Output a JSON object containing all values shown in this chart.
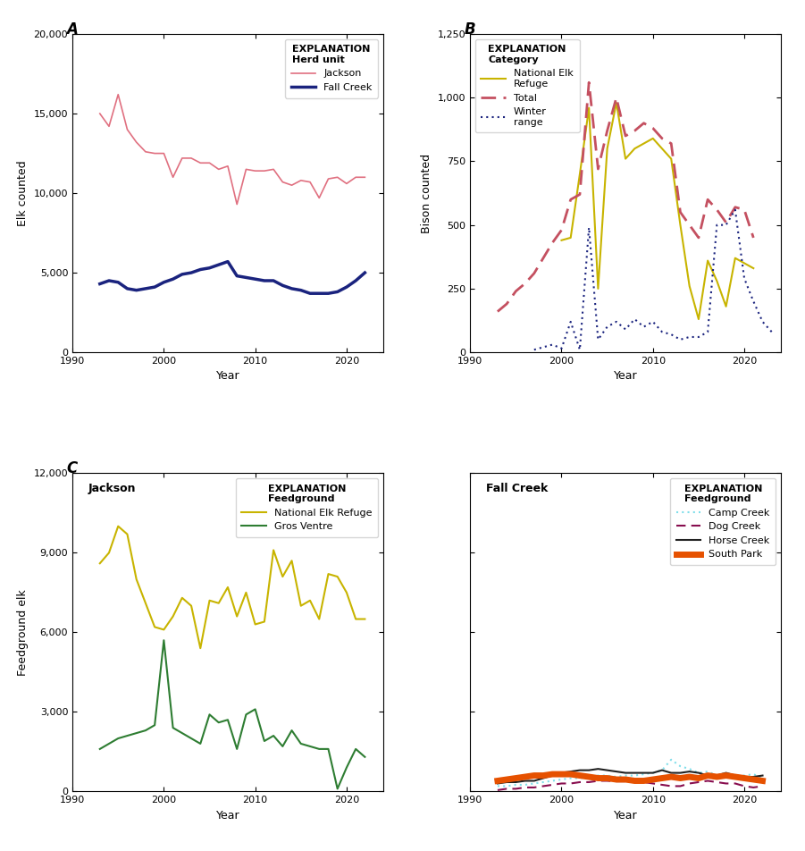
{
  "panel_A": {
    "title": "A",
    "xlabel": "Year",
    "ylabel": "Elk counted",
    "ylim": [
      0,
      20000
    ],
    "yticks": [
      0,
      5000,
      10000,
      15000,
      20000
    ],
    "xlim": [
      1990,
      2024
    ],
    "xticks": [
      1990,
      2000,
      2010,
      2020
    ],
    "jackson_years": [
      1993,
      1994,
      1995,
      1996,
      1997,
      1998,
      1999,
      2000,
      2001,
      2002,
      2003,
      2004,
      2005,
      2006,
      2007,
      2008,
      2009,
      2010,
      2011,
      2012,
      2013,
      2014,
      2015,
      2016,
      2017,
      2018,
      2019,
      2020,
      2021,
      2022
    ],
    "jackson_vals": [
      15000,
      14200,
      16200,
      14000,
      13200,
      12600,
      12500,
      12500,
      11000,
      12200,
      12200,
      11900,
      11900,
      11500,
      11700,
      9300,
      11500,
      11400,
      11400,
      11500,
      10700,
      10500,
      10800,
      10700,
      9700,
      10900,
      11000,
      10600,
      11000,
      11000
    ],
    "fallcreek_years": [
      1993,
      1994,
      1995,
      1996,
      1997,
      1998,
      1999,
      2000,
      2001,
      2002,
      2003,
      2004,
      2005,
      2006,
      2007,
      2008,
      2009,
      2010,
      2011,
      2012,
      2013,
      2014,
      2015,
      2016,
      2017,
      2018,
      2019,
      2020,
      2021,
      2022
    ],
    "fallcreek_vals": [
      4300,
      4500,
      4400,
      4000,
      3900,
      4000,
      4100,
      4400,
      4600,
      4900,
      5000,
      5200,
      5300,
      5500,
      5700,
      4800,
      4700,
      4600,
      4500,
      4500,
      4200,
      4000,
      3900,
      3700,
      3700,
      3700,
      3800,
      4100,
      4500,
      5000
    ],
    "jackson_color": "#e07080",
    "fallcreek_color": "#1a237e",
    "legend_title": "EXPLANATION",
    "legend_subtitle": "Herd unit"
  },
  "panel_B": {
    "title": "B",
    "xlabel": "Year",
    "ylabel": "Bison counted",
    "ylim": [
      0,
      1250
    ],
    "yticks": [
      0,
      250,
      500,
      750,
      1000,
      1250
    ],
    "xlim": [
      1990,
      2024
    ],
    "xticks": [
      1990,
      2000,
      2010,
      2020
    ],
    "ner_years": [
      2000,
      2001,
      2002,
      2003,
      2004,
      2005,
      2006,
      2007,
      2008,
      2009,
      2010,
      2011,
      2012,
      2013,
      2014,
      2015,
      2016,
      2017,
      2018,
      2019,
      2020,
      2021
    ],
    "ner_vals": [
      440,
      450,
      700,
      960,
      250,
      800,
      980,
      760,
      800,
      820,
      840,
      800,
      760,
      500,
      260,
      130,
      360,
      280,
      180,
      370,
      350,
      330
    ],
    "total_years": [
      1993,
      1994,
      1995,
      1996,
      1997,
      1998,
      1999,
      2000,
      2001,
      2002,
      2003,
      2004,
      2005,
      2006,
      2007,
      2008,
      2009,
      2010,
      2011,
      2012,
      2013,
      2014,
      2015,
      2016,
      2017,
      2018,
      2019,
      2020,
      2021
    ],
    "total_vals": [
      160,
      190,
      240,
      270,
      310,
      370,
      430,
      480,
      600,
      620,
      1060,
      720,
      870,
      1000,
      850,
      870,
      900,
      880,
      840,
      820,
      550,
      500,
      450,
      600,
      560,
      510,
      570,
      560,
      450
    ],
    "winter_years": [
      1997,
      1998,
      1999,
      2000,
      2001,
      2002,
      2003,
      2004,
      2005,
      2006,
      2007,
      2008,
      2009,
      2010,
      2011,
      2012,
      2013,
      2014,
      2015,
      2016,
      2017,
      2018,
      2019,
      2020,
      2021,
      2022,
      2023
    ],
    "winter_vals": [
      10,
      20,
      30,
      15,
      120,
      10,
      490,
      50,
      100,
      120,
      90,
      130,
      100,
      120,
      80,
      70,
      50,
      60,
      60,
      80,
      500,
      500,
      560,
      290,
      200,
      120,
      80
    ],
    "ner_color": "#c8b400",
    "total_color": "#c45060",
    "winter_color": "#1a237e",
    "legend_title": "EXPLANATION",
    "legend_subtitle": "Category"
  },
  "panel_C1": {
    "title_label": "Jackson",
    "xlabel": "Year",
    "ylabel": "Feedground elk",
    "ylim": [
      0,
      12000
    ],
    "yticks": [
      0,
      3000,
      6000,
      9000,
      12000
    ],
    "xlim": [
      1990,
      2024
    ],
    "xticks": [
      1990,
      2000,
      2010,
      2020
    ],
    "ner_years": [
      1993,
      1994,
      1995,
      1996,
      1997,
      1998,
      1999,
      2000,
      2001,
      2002,
      2003,
      2004,
      2005,
      2006,
      2007,
      2008,
      2009,
      2010,
      2011,
      2012,
      2013,
      2014,
      2015,
      2016,
      2017,
      2018,
      2019,
      2020,
      2021,
      2022
    ],
    "ner_vals": [
      8600,
      9000,
      10000,
      9700,
      8000,
      7100,
      6200,
      6100,
      6600,
      7300,
      7000,
      5400,
      7200,
      7100,
      7700,
      6600,
      7500,
      6300,
      6400,
      9100,
      8100,
      8700,
      7000,
      7200,
      6500,
      8200,
      8100,
      7500,
      6500,
      6500
    ],
    "grosventre_years": [
      1993,
      1994,
      1995,
      1996,
      1997,
      1998,
      1999,
      2000,
      2001,
      2002,
      2003,
      2004,
      2005,
      2006,
      2007,
      2008,
      2009,
      2010,
      2011,
      2012,
      2013,
      2014,
      2015,
      2016,
      2017,
      2018,
      2019,
      2020,
      2021,
      2022
    ],
    "grosventre_vals": [
      1600,
      1800,
      2000,
      2100,
      2200,
      2300,
      2500,
      5700,
      2400,
      2200,
      2000,
      1800,
      2900,
      2600,
      2700,
      1600,
      2900,
      3100,
      1900,
      2100,
      1700,
      2300,
      1800,
      1700,
      1600,
      1600,
      100,
      900,
      1600,
      1300
    ],
    "ner_color": "#c8b400",
    "grosventre_color": "#2e7d32",
    "legend_title": "EXPLANATION",
    "legend_subtitle": "Feedground"
  },
  "panel_C2": {
    "title_label": "Fall Creek",
    "xlabel": "Year",
    "ylabel": "",
    "ylim": [
      0,
      12000
    ],
    "yticks": [
      0,
      3000,
      6000,
      9000,
      12000
    ],
    "xlim": [
      1990,
      2024
    ],
    "xticks": [
      1990,
      2000,
      2010,
      2020
    ],
    "campcreek_years": [
      1993,
      1994,
      1995,
      1996,
      1997,
      1998,
      1999,
      2000,
      2001,
      2002,
      2003,
      2004,
      2005,
      2006,
      2007,
      2008,
      2009,
      2010,
      2011,
      2012,
      2013,
      2014,
      2015,
      2016,
      2017,
      2018,
      2019,
      2020,
      2021,
      2022
    ],
    "campcreek_vals": [
      200,
      200,
      250,
      250,
      300,
      350,
      400,
      450,
      500,
      500,
      550,
      600,
      600,
      550,
      600,
      600,
      650,
      700,
      800,
      1200,
      950,
      850,
      700,
      750,
      600,
      700,
      600,
      600,
      650,
      500
    ],
    "dogcreek_years": [
      1993,
      1994,
      1995,
      1996,
      1997,
      1998,
      1999,
      2000,
      2001,
      2002,
      2003,
      2004,
      2005,
      2006,
      2007,
      2008,
      2009,
      2010,
      2011,
      2012,
      2013,
      2014,
      2015,
      2016,
      2017,
      2018,
      2019,
      2020,
      2021,
      2022
    ],
    "dogcreek_vals": [
      50,
      100,
      100,
      150,
      150,
      200,
      250,
      300,
      300,
      350,
      350,
      400,
      400,
      380,
      380,
      350,
      350,
      300,
      250,
      200,
      200,
      300,
      350,
      400,
      350,
      300,
      300,
      200,
      150,
      200
    ],
    "horsecreek_years": [
      1993,
      1994,
      1995,
      1996,
      1997,
      1998,
      1999,
      2000,
      2001,
      2002,
      2003,
      2004,
      2005,
      2006,
      2007,
      2008,
      2009,
      2010,
      2011,
      2012,
      2013,
      2014,
      2015,
      2016,
      2017,
      2018,
      2019,
      2020,
      2021,
      2022
    ],
    "horsecreek_vals": [
      300,
      350,
      350,
      400,
      400,
      500,
      600,
      700,
      750,
      800,
      800,
      850,
      800,
      750,
      700,
      700,
      700,
      700,
      800,
      700,
      700,
      750,
      700,
      600,
      600,
      700,
      600,
      550,
      550,
      600
    ],
    "southpark_years": [
      1993,
      1994,
      1995,
      1996,
      1997,
      1998,
      1999,
      2000,
      2001,
      2002,
      2003,
      2004,
      2005,
      2006,
      2007,
      2008,
      2009,
      2010,
      2011,
      2012,
      2013,
      2014,
      2015,
      2016,
      2017,
      2018,
      2019,
      2020,
      2021,
      2022
    ],
    "southpark_vals": [
      400,
      450,
      500,
      550,
      600,
      600,
      650,
      650,
      650,
      600,
      550,
      500,
      500,
      450,
      450,
      400,
      400,
      450,
      500,
      550,
      500,
      550,
      500,
      600,
      550,
      600,
      550,
      500,
      450,
      400
    ],
    "campcreek_color": "#80deea",
    "dogcreek_color": "#880e4f",
    "horsecreek_color": "#212121",
    "southpark_color": "#e65100",
    "legend_title": "EXPLANATION",
    "legend_subtitle": "Feedground"
  }
}
